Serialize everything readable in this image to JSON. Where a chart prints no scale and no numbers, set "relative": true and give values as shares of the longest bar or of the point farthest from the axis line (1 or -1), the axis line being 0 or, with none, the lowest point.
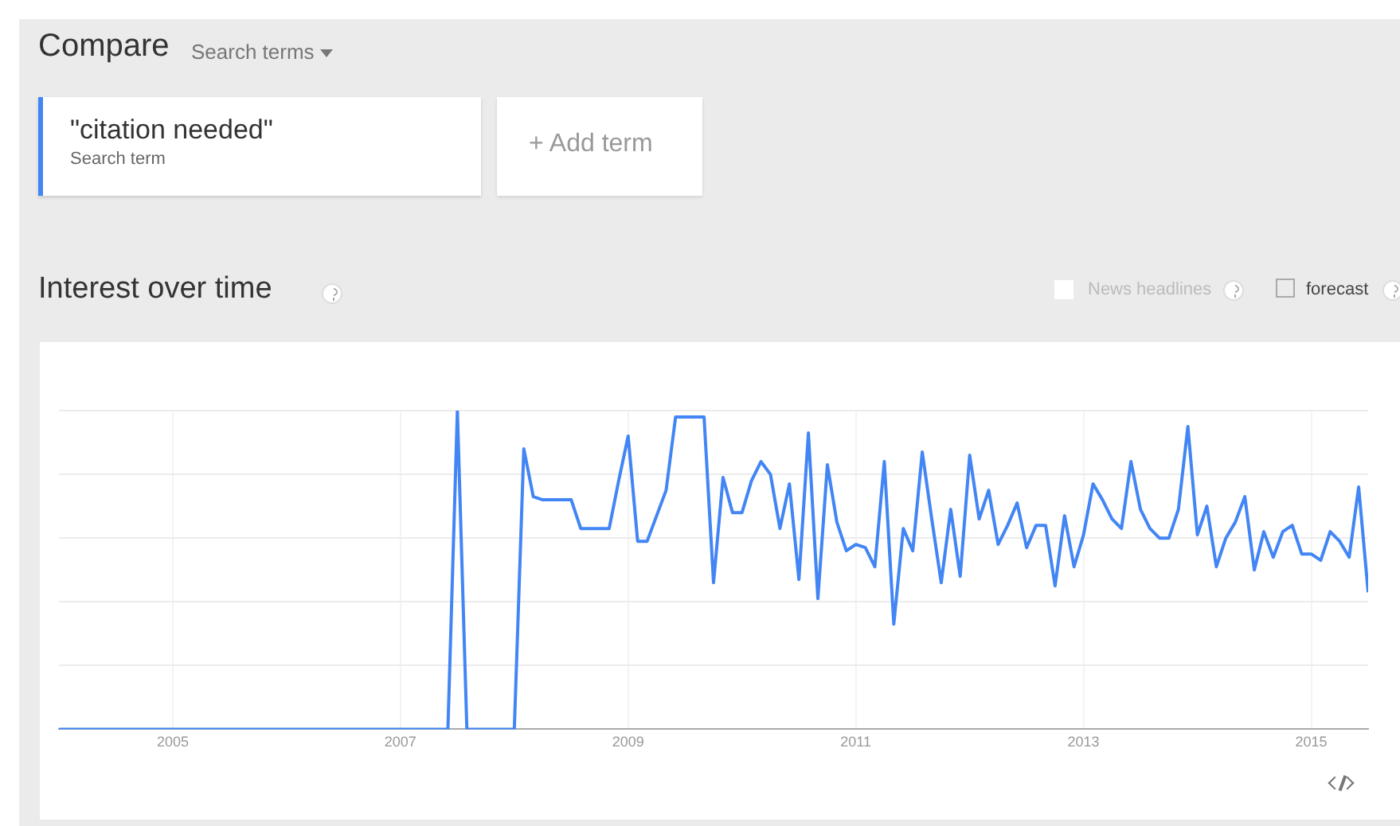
{
  "chart_data": {
    "type": "line",
    "title": "Interest over time",
    "relative": true,
    "grid": true,
    "tick_labels": "x",
    "legend": "top left",
    "marker": "none",
    "line_style": "solid",
    "annotations": [
      "Compare",
      "Search terms",
      "Search term",
      "+ Add term",
      "News headlines",
      "forecast"
    ],
    "xlim": [
      "2004-01",
      "2015-07"
    ],
    "xticks": [
      "2005",
      "2007",
      "2009",
      "2011",
      "2013",
      "2015"
    ],
    "x": [
      "2004-01",
      "2004-02",
      "2004-03",
      "2004-04",
      "2004-05",
      "2004-06",
      "2004-07",
      "2004-08",
      "2004-09",
      "2004-10",
      "2004-11",
      "2004-12",
      "2005-01",
      "2005-02",
      "2005-03",
      "2005-04",
      "2005-05",
      "2005-06",
      "2005-07",
      "2005-08",
      "2005-09",
      "2005-10",
      "2005-11",
      "2005-12",
      "2006-01",
      "2006-02",
      "2006-03",
      "2006-04",
      "2006-05",
      "2006-06",
      "2006-07",
      "2006-08",
      "2006-09",
      "2006-10",
      "2006-11",
      "2006-12",
      "2007-01",
      "2007-02",
      "2007-03",
      "2007-04",
      "2007-05",
      "2007-06",
      "2007-07",
      "2007-08",
      "2007-09",
      "2007-10",
      "2007-11",
      "2007-12",
      "2008-01",
      "2008-02",
      "2008-03",
      "2008-04",
      "2008-05",
      "2008-06",
      "2008-07",
      "2008-08",
      "2008-09",
      "2008-10",
      "2008-11",
      "2008-12",
      "2009-01",
      "2009-02",
      "2009-03",
      "2009-04",
      "2009-05",
      "2009-06",
      "2009-07",
      "2009-08",
      "2009-09",
      "2009-10",
      "2009-11",
      "2009-12",
      "2010-01",
      "2010-02",
      "2010-03",
      "2010-04",
      "2010-05",
      "2010-06",
      "2010-07",
      "2010-08",
      "2010-09",
      "2010-10",
      "2010-11",
      "2010-12",
      "2011-01",
      "2011-02",
      "2011-03",
      "2011-04",
      "2011-05",
      "2011-06",
      "2011-07",
      "2011-08",
      "2011-09",
      "2011-10",
      "2011-11",
      "2011-12",
      "2012-01",
      "2012-02",
      "2012-03",
      "2012-04",
      "2012-05",
      "2012-06",
      "2012-07",
      "2012-08",
      "2012-09",
      "2012-10",
      "2012-11",
      "2012-12",
      "2013-01",
      "2013-02",
      "2013-03",
      "2013-04",
      "2013-05",
      "2013-06",
      "2013-07",
      "2013-08",
      "2013-09",
      "2013-10",
      "2013-11",
      "2013-12",
      "2014-01",
      "2014-02",
      "2014-03",
      "2014-04",
      "2014-05",
      "2014-06",
      "2014-07",
      "2014-08",
      "2014-09",
      "2014-10",
      "2014-11",
      "2014-12",
      "2015-01",
      "2015-02",
      "2015-03",
      "2015-04",
      "2015-05",
      "2015-06",
      "2015-07"
    ],
    "series": [
      {
        "name": "\"citation needed\"",
        "color": "#4285f4",
        "values": [
          0,
          0,
          0,
          0,
          0,
          0,
          0,
          0,
          0,
          0,
          0,
          0,
          0,
          0,
          0,
          0,
          0,
          0,
          0,
          0,
          0,
          0,
          0,
          0,
          0,
          0,
          0,
          0,
          0,
          0,
          0,
          0,
          0,
          0,
          0,
          0,
          0,
          0,
          0,
          0,
          0,
          0,
          1,
          0,
          0,
          0,
          0,
          0,
          0,
          0.88,
          0.73,
          0.72,
          0.72,
          0.72,
          0.72,
          0.63,
          0.63,
          0.63,
          0.63,
          0.78,
          0.92,
          0.59,
          0.59,
          0.67,
          0.75,
          0.98,
          0.98,
          0.98,
          0.98,
          0.46,
          0.79,
          0.68,
          0.68,
          0.78,
          0.84,
          0.8,
          0.63,
          0.77,
          0.47,
          0.93,
          0.41,
          0.83,
          0.65,
          0.56,
          0.58,
          0.57,
          0.51,
          0.84,
          0.33,
          0.63,
          0.56,
          0.87,
          0.66,
          0.46,
          0.69,
          0.48,
          0.86,
          0.66,
          0.75,
          0.58,
          0.64,
          0.71,
          0.57,
          0.64,
          0.64,
          0.45,
          0.67,
          0.51,
          0.61,
          0.77,
          0.72,
          0.66,
          0.63,
          0.84,
          0.69,
          0.63,
          0.6,
          0.6,
          0.69,
          0.95,
          0.61,
          0.7,
          0.51,
          0.6,
          0.65,
          0.73,
          0.5,
          0.62,
          0.54,
          0.62,
          0.64,
          0.55,
          0.55,
          0.53,
          0.62,
          0.59,
          0.54,
          0.76,
          0.43
        ]
      }
    ]
  }
}
